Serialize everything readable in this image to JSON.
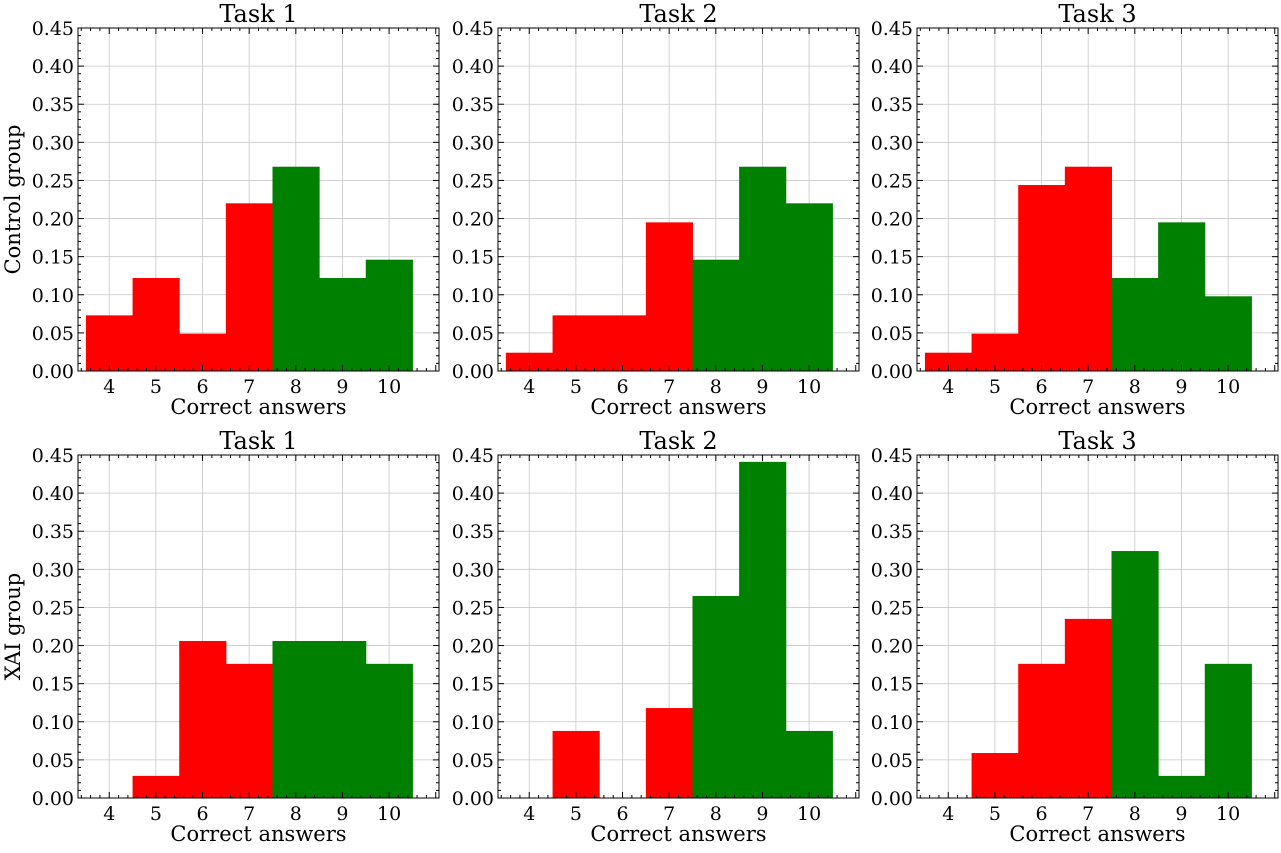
{
  "chart_data": [
    {
      "type": "bar",
      "title": "Task 1",
      "row_label": "Control group",
      "xlabel": "Correct answers",
      "categories": [
        "4",
        "5",
        "6",
        "7",
        "8",
        "9",
        "10"
      ],
      "values": [
        0.073,
        0.122,
        0.049,
        0.22,
        0.268,
        0.122,
        0.146
      ],
      "bar_colors": [
        "#ff0000",
        "#ff0000",
        "#ff0000",
        "#ff0000",
        "#008000",
        "#008000",
        "#008000"
      ],
      "ylim": [
        0,
        0.45
      ],
      "yticks": [
        "0.00",
        "0.05",
        "0.10",
        "0.15",
        "0.20",
        "0.25",
        "0.30",
        "0.35",
        "0.40",
        "0.45"
      ],
      "grid": true
    },
    {
      "type": "bar",
      "title": "Task 2",
      "xlabel": "Correct answers",
      "categories": [
        "4",
        "5",
        "6",
        "7",
        "8",
        "9",
        "10"
      ],
      "values": [
        0.024,
        0.073,
        0.073,
        0.195,
        0.146,
        0.268,
        0.22
      ],
      "bar_colors": [
        "#ff0000",
        "#ff0000",
        "#ff0000",
        "#ff0000",
        "#008000",
        "#008000",
        "#008000"
      ],
      "ylim": [
        0,
        0.45
      ],
      "yticks": [
        "0.00",
        "0.05",
        "0.10",
        "0.15",
        "0.20",
        "0.25",
        "0.30",
        "0.35",
        "0.40",
        "0.45"
      ],
      "grid": true
    },
    {
      "type": "bar",
      "title": "Task 3",
      "xlabel": "Correct answers",
      "categories": [
        "4",
        "5",
        "6",
        "7",
        "8",
        "9",
        "10"
      ],
      "values": [
        0.024,
        0.049,
        0.244,
        0.268,
        0.122,
        0.195,
        0.098
      ],
      "bar_colors": [
        "#ff0000",
        "#ff0000",
        "#ff0000",
        "#ff0000",
        "#008000",
        "#008000",
        "#008000"
      ],
      "ylim": [
        0,
        0.45
      ],
      "yticks": [
        "0.00",
        "0.05",
        "0.10",
        "0.15",
        "0.20",
        "0.25",
        "0.30",
        "0.35",
        "0.40",
        "0.45"
      ],
      "grid": true
    },
    {
      "type": "bar",
      "title": "Task 1",
      "row_label": "XAI group",
      "xlabel": "Correct answers",
      "categories": [
        "4",
        "5",
        "6",
        "7",
        "8",
        "9",
        "10"
      ],
      "values": [
        0.0,
        0.029,
        0.206,
        0.176,
        0.206,
        0.206,
        0.176
      ],
      "bar_colors": [
        "#ff0000",
        "#ff0000",
        "#ff0000",
        "#ff0000",
        "#008000",
        "#008000",
        "#008000"
      ],
      "ylim": [
        0,
        0.45
      ],
      "yticks": [
        "0.00",
        "0.05",
        "0.10",
        "0.15",
        "0.20",
        "0.25",
        "0.30",
        "0.35",
        "0.40",
        "0.45"
      ],
      "grid": true
    },
    {
      "type": "bar",
      "title": "Task 2",
      "xlabel": "Correct answers",
      "categories": [
        "4",
        "5",
        "6",
        "7",
        "8",
        "9",
        "10"
      ],
      "values": [
        0.0,
        0.088,
        0.0,
        0.118,
        0.265,
        0.441,
        0.088
      ],
      "bar_colors": [
        "#ff0000",
        "#ff0000",
        "#ff0000",
        "#ff0000",
        "#008000",
        "#008000",
        "#008000"
      ],
      "ylim": [
        0,
        0.45
      ],
      "yticks": [
        "0.00",
        "0.05",
        "0.10",
        "0.15",
        "0.20",
        "0.25",
        "0.30",
        "0.35",
        "0.40",
        "0.45"
      ],
      "grid": true
    },
    {
      "type": "bar",
      "title": "Task 3",
      "xlabel": "Correct answers",
      "categories": [
        "4",
        "5",
        "6",
        "7",
        "8",
        "9",
        "10"
      ],
      "values": [
        0.0,
        0.059,
        0.176,
        0.235,
        0.324,
        0.029,
        0.176
      ],
      "bar_colors": [
        "#ff0000",
        "#ff0000",
        "#ff0000",
        "#ff0000",
        "#008000",
        "#008000",
        "#008000"
      ],
      "ylim": [
        0,
        0.45
      ],
      "yticks": [
        "0.00",
        "0.05",
        "0.10",
        "0.15",
        "0.20",
        "0.25",
        "0.30",
        "0.35",
        "0.40",
        "0.45"
      ],
      "grid": true
    }
  ]
}
